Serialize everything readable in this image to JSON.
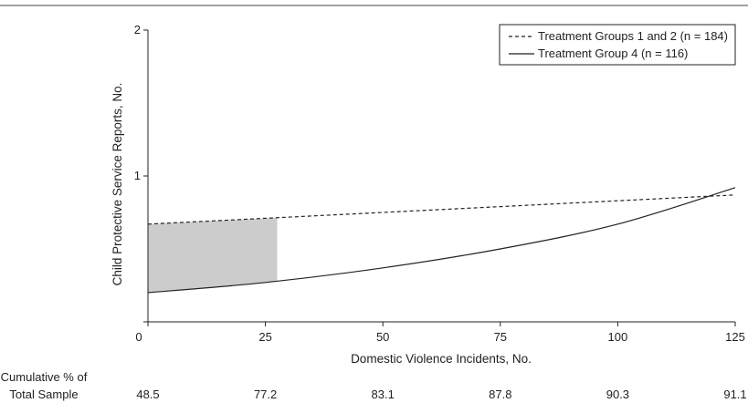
{
  "chart_data": {
    "type": "line",
    "xlabel": "Domestic Violence Incidents, No.",
    "ylabel": "Child Protective Service Reports, No.",
    "xlim": [
      0,
      125
    ],
    "ylim": [
      0,
      2
    ],
    "x_ticks": [
      "0",
      "25",
      "50",
      "75",
      "100",
      "125"
    ],
    "y_ticks": [
      "1",
      "2"
    ],
    "grid": false,
    "legend_position": "top-right",
    "series": [
      {
        "name": "Treatment Groups 1 and 2 (n = 184)",
        "style": "dashed",
        "color": "#222222",
        "x": [
          0,
          25,
          50,
          75,
          100,
          125
        ],
        "y": [
          0.67,
          0.71,
          0.75,
          0.79,
          0.83,
          0.87
        ]
      },
      {
        "name": "Treatment Group 4 (n = 116)",
        "style": "solid",
        "color": "#222222",
        "x": [
          0,
          25,
          50,
          75,
          100,
          125
        ],
        "y": [
          0.2,
          0.27,
          0.37,
          0.5,
          0.67,
          0.92
        ]
      }
    ],
    "shaded_region": {
      "x_start": 0,
      "x_end": 27.5,
      "color": "#cccccc"
    },
    "cumulative_row": {
      "label_line1": "Cumulative % of",
      "label_line2": "Total Sample",
      "values": [
        "48.5",
        "77.2",
        "83.1",
        "87.8",
        "90.3",
        "91.1"
      ]
    }
  }
}
